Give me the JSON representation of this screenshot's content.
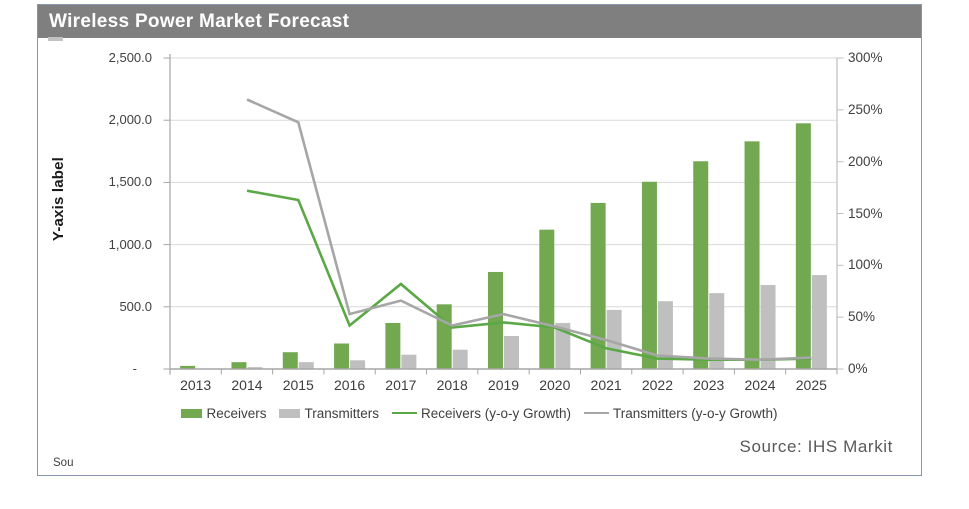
{
  "title": "Wireless Power Market Forecast",
  "y_axis_label": "Y-axis label",
  "source_text": "Source: IHS Markit",
  "corner_text": "Sou",
  "colors": {
    "title_bar_bg": "#7F7F7F",
    "title_text": "#FFFFFF",
    "frame_border": "#8496B0",
    "gridline": "#D9D9D9",
    "axis_line": "#A6A6A6",
    "right_axis_line": "#BFBFBF",
    "tick_text": "#404040",
    "source_text": "#595959",
    "receivers_bar": "#72A850",
    "transmitters_bar": "#BFBFBF",
    "receivers_line": "#5BA846",
    "transmitters_line": "#A6A6A6"
  },
  "chart_data": {
    "type": "combo-bar-line",
    "title": "Wireless Power Market Forecast",
    "categories": [
      "2013",
      "2014",
      "2015",
      "2016",
      "2017",
      "2018",
      "2019",
      "2020",
      "2021",
      "2022",
      "2023",
      "2024",
      "2025"
    ],
    "series": [
      {
        "name": "Receivers",
        "type": "bar",
        "axis": "left",
        "color": "#72A850",
        "values": [
          25,
          55,
          135,
          205,
          370,
          520,
          780,
          1120,
          1335,
          1505,
          1670,
          1830,
          1975
        ]
      },
      {
        "name": "Transmitters",
        "type": "bar",
        "axis": "left",
        "color": "#BFBFBF",
        "values": [
          3,
          15,
          55,
          70,
          115,
          155,
          265,
          370,
          475,
          545,
          610,
          675,
          755
        ]
      },
      {
        "name": "Receivers (y-o-y Growth)",
        "type": "line",
        "axis": "right",
        "color": "#5BA846",
        "values": [
          null,
          172,
          163,
          42,
          82,
          40,
          45,
          40,
          20,
          10,
          9,
          9,
          10
        ]
      },
      {
        "name": "Transmitters (y-o-y Growth)",
        "type": "line",
        "axis": "right",
        "color": "#A6A6A6",
        "values": [
          null,
          260,
          238,
          53,
          66,
          42,
          53,
          41,
          28,
          13,
          10,
          9,
          11
        ]
      }
    ],
    "left_axis": {
      "label": "Y-axis label",
      "range": [
        0,
        2500
      ],
      "tick_step": 500,
      "tick_labels": [
        "-",
        "500.0",
        "1,000.0",
        "1,500.0",
        "2,000.0",
        "2,500.0"
      ]
    },
    "right_axis": {
      "range": [
        0,
        300
      ],
      "tick_step": 50,
      "tick_labels": [
        "0%",
        "50%",
        "100%",
        "150%",
        "200%",
        "250%",
        "300%"
      ]
    },
    "grid": true,
    "legend_position": "bottom"
  }
}
